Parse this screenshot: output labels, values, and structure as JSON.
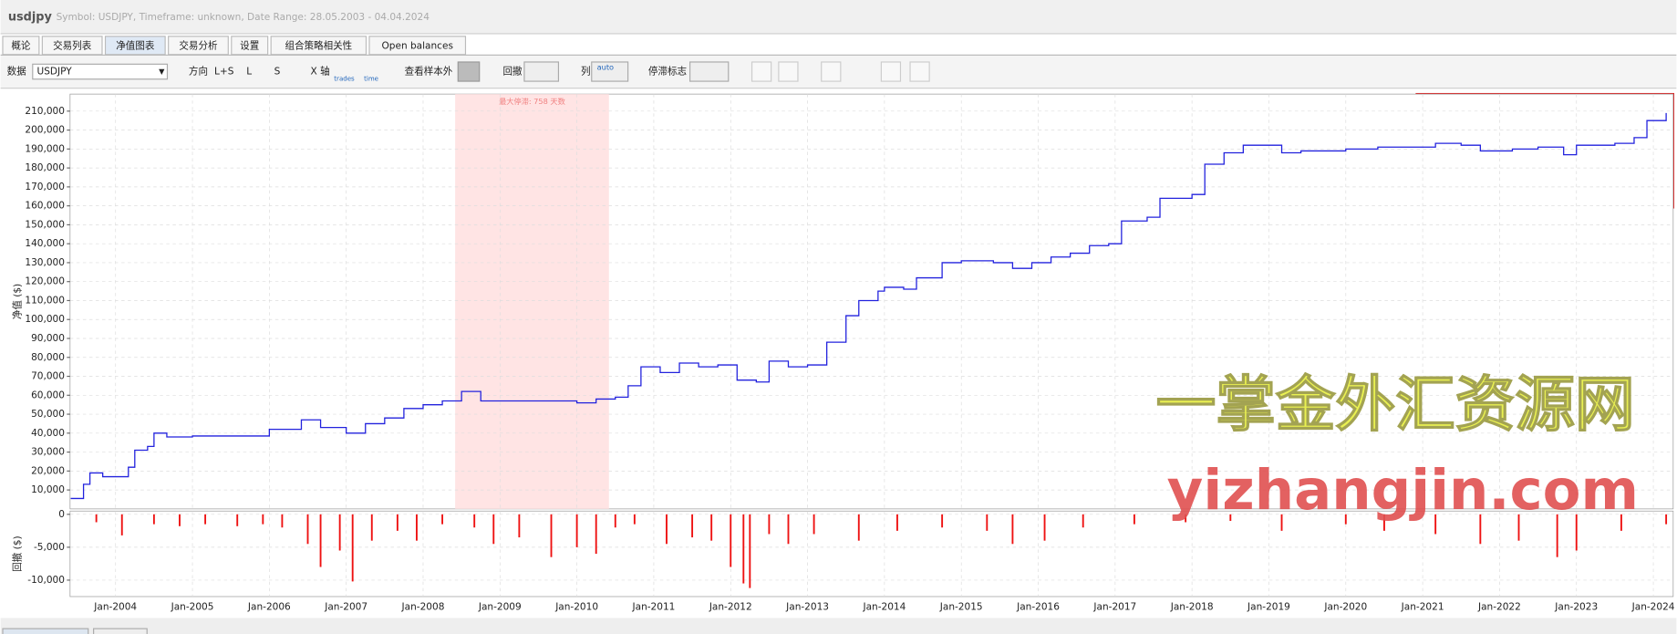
{
  "header": {
    "title": "usdjpy",
    "subtitle": "Symbol: USDJPY, Timeframe: unknown, Date Range: 28.05.2003 - 04.04.2024"
  },
  "tabs": [
    "概论",
    "交易列表",
    "净值图表",
    "交易分析",
    "设置",
    "组合策略相关性",
    "Open balances"
  ],
  "toolbar": {
    "data_label": "数据",
    "symbol": "USDJPY",
    "direction_label": "方向",
    "directions": [
      "L+S",
      "L",
      "S"
    ],
    "x_axis_label": "X 轴",
    "x_axis_options": [
      "trades",
      "time"
    ],
    "out_of_sample": "查看样本外",
    "drawdown_label": "回撤",
    "column_label": "列",
    "column_option": "auto",
    "stagnation_label": "停滞标志"
  },
  "watermark": [
    "一掌金外汇资源网",
    "yizhangjin.com"
  ],
  "chart_data": {
    "type": "line",
    "ylabel": "净值 ($)",
    "xlim": [
      "28.05.2003",
      "04.04.2024"
    ],
    "xticks": [
      "Jan-2004",
      "Jan-2005",
      "Jan-2006",
      "Jan-2007",
      "Jan-2008",
      "Jan-2009",
      "Jan-2010",
      "Jan-2011",
      "Jan-2012",
      "Jan-2013",
      "Jan-2014",
      "Jan-2015",
      "Jan-2016",
      "Jan-2017",
      "Jan-2018",
      "Jan-2019",
      "Jan-2020",
      "Jan-2021",
      "Jan-2022",
      "Jan-2023",
      "Jan-2024"
    ],
    "ylim": [
      0,
      219000
    ],
    "yticks": [
      {
        "value": 10000,
        "label": "10,000"
      },
      {
        "value": 20000,
        "label": "20,000"
      },
      {
        "value": 30000,
        "label": "30,000"
      },
      {
        "value": 40000,
        "label": "40,000"
      },
      {
        "value": 50000,
        "label": "50,000"
      },
      {
        "value": 60000,
        "label": "60,000"
      },
      {
        "value": 70000,
        "label": "70,000"
      },
      {
        "value": 80000,
        "label": "80,000"
      },
      {
        "value": 90000,
        "label": "90,000"
      },
      {
        "value": 100000,
        "label": "100,000"
      },
      {
        "value": 110000,
        "label": "110,000"
      },
      {
        "value": 120000,
        "label": "120,000"
      },
      {
        "value": 130000,
        "label": "130,000"
      },
      {
        "value": 140000,
        "label": "140,000"
      },
      {
        "value": 150000,
        "label": "150,000"
      },
      {
        "value": 160000,
        "label": "160,000"
      },
      {
        "value": 170000,
        "label": "170,000"
      },
      {
        "value": 180000,
        "label": "180,000"
      },
      {
        "value": 190000,
        "label": "190,000"
      },
      {
        "value": 200000,
        "label": "200,000"
      },
      {
        "value": 210000,
        "label": "210,000"
      }
    ],
    "grid": true,
    "stagnation": {
      "label": "最大停滞: 758 天数",
      "start": "Jun-2008",
      "end": "Jun-2010",
      "color": "#ffe4e4"
    },
    "series": [
      {
        "name": "净值",
        "color": "#2222dd",
        "x": [
          "Jun-2003",
          "Aug-2003",
          "Sep-2003",
          "Nov-2003",
          "Jan-2004",
          "Mar-2004",
          "Apr-2004",
          "Jun-2004",
          "Jul-2004",
          "Sep-2004",
          "Jan-2005",
          "Jan-2006",
          "Jun-2006",
          "Sep-2006",
          "Jan-2007",
          "Apr-2007",
          "Jul-2007",
          "Oct-2007",
          "Jan-2008",
          "Apr-2008",
          "Jul-2008",
          "Oct-2008",
          "Jan-2009",
          "Jan-2010",
          "Apr-2010",
          "Jul-2010",
          "Sep-2010",
          "Nov-2010",
          "Feb-2011",
          "May-2011",
          "Aug-2011",
          "Nov-2011",
          "Feb-2012",
          "May-2012",
          "Jul-2012",
          "Oct-2012",
          "Jan-2013",
          "Apr-2013",
          "Jul-2013",
          "Sep-2013",
          "Dec-2013",
          "Jan-2014",
          "Apr-2014",
          "Jun-2014",
          "Oct-2014",
          "Jan-2015",
          "Jun-2015",
          "Sep-2015",
          "Dec-2015",
          "Mar-2016",
          "Jun-2016",
          "Sep-2016",
          "Dec-2016",
          "Feb-2017",
          "Jun-2017",
          "Aug-2017",
          "Jan-2018",
          "Mar-2018",
          "Jun-2018",
          "Sep-2018",
          "Dec-2018",
          "Mar-2019",
          "Jun-2019",
          "Jan-2020",
          "Jun-2020",
          "Dec-2020",
          "Mar-2021",
          "Jul-2021",
          "Oct-2021",
          "Mar-2022",
          "Jul-2022",
          "Nov-2022",
          "Jan-2023",
          "Jul-2023",
          "Oct-2023",
          "Dec-2023",
          "Mar-2024"
        ],
        "values": [
          5500,
          13000,
          19000,
          17000,
          17000,
          22000,
          31000,
          33000,
          40000,
          38000,
          38500,
          42000,
          47000,
          43000,
          40000,
          45000,
          48000,
          53000,
          55000,
          57000,
          62000,
          57000,
          57000,
          56000,
          58000,
          59000,
          65000,
          75000,
          72000,
          77000,
          75000,
          76000,
          68000,
          67000,
          78000,
          75000,
          76000,
          88000,
          102000,
          110000,
          115000,
          117000,
          116000,
          122000,
          130000,
          131000,
          130000,
          127000,
          130000,
          133000,
          135000,
          139000,
          140000,
          152000,
          154000,
          164000,
          166000,
          182000,
          188000,
          192000,
          192000,
          188000,
          189000,
          190000,
          191000,
          191000,
          193000,
          192000,
          189000,
          190000,
          191000,
          187000,
          192000,
          193000,
          196000,
          205000,
          209000
        ]
      }
    ]
  },
  "drawdown": {
    "type": "bar",
    "ylabel": "回撤 ($)",
    "color": "#ee1111",
    "ylim": [
      -12500,
      500
    ],
    "yticks": [
      0,
      {
        "value": -5000,
        "label": "-5,000"
      },
      {
        "value": -10000,
        "label": "-10,000"
      }
    ],
    "x": [
      "Oct-2003",
      "Feb-2004",
      "Jul-2004",
      "Nov-2004",
      "Mar-2005",
      "Aug-2005",
      "Dec-2005",
      "Mar-2006",
      "Jul-2006",
      "Sep-2006",
      "Dec-2006",
      "Feb-2007",
      "May-2007",
      "Sep-2007",
      "Dec-2007",
      "Apr-2008",
      "Sep-2008",
      "Dec-2008",
      "Apr-2009",
      "Sep-2009",
      "Jan-2010",
      "Apr-2010",
      "Jul-2010",
      "Oct-2010",
      "Mar-2011",
      "Jul-2011",
      "Oct-2011",
      "Jan-2012",
      "Mar-2012",
      "Apr-2012",
      "Jul-2012",
      "Oct-2012",
      "Feb-2013",
      "Sep-2013",
      "Mar-2014",
      "Oct-2014",
      "May-2015",
      "Sep-2015",
      "Feb-2016",
      "Aug-2016",
      "Apr-2017",
      "Dec-2017",
      "Jul-2018",
      "Mar-2019",
      "Jan-2020",
      "Jul-2020",
      "Mar-2021",
      "Oct-2021",
      "Apr-2022",
      "Oct-2022",
      "Jan-2023",
      "Aug-2023",
      "Mar-2024"
    ],
    "values": [
      -1200,
      -3200,
      -1500,
      -1800,
      -1500,
      -1800,
      -1500,
      -2000,
      -4500,
      -8000,
      -5500,
      -10200,
      -4000,
      -2500,
      -4000,
      -1500,
      -2000,
      -4500,
      -3500,
      -6500,
      -5000,
      -6000,
      -2000,
      -1500,
      -4500,
      -3500,
      -4000,
      -8000,
      -10500,
      -11200,
      -3000,
      -4500,
      -3000,
      -4000,
      -2500,
      -2000,
      -2500,
      -4500,
      -4000,
      -2000,
      -1500,
      -1200,
      -1000,
      -2500,
      -1500,
      -2500,
      -3000,
      -4500,
      -4000,
      -6500,
      -5500,
      -2500,
      -1500
    ]
  }
}
